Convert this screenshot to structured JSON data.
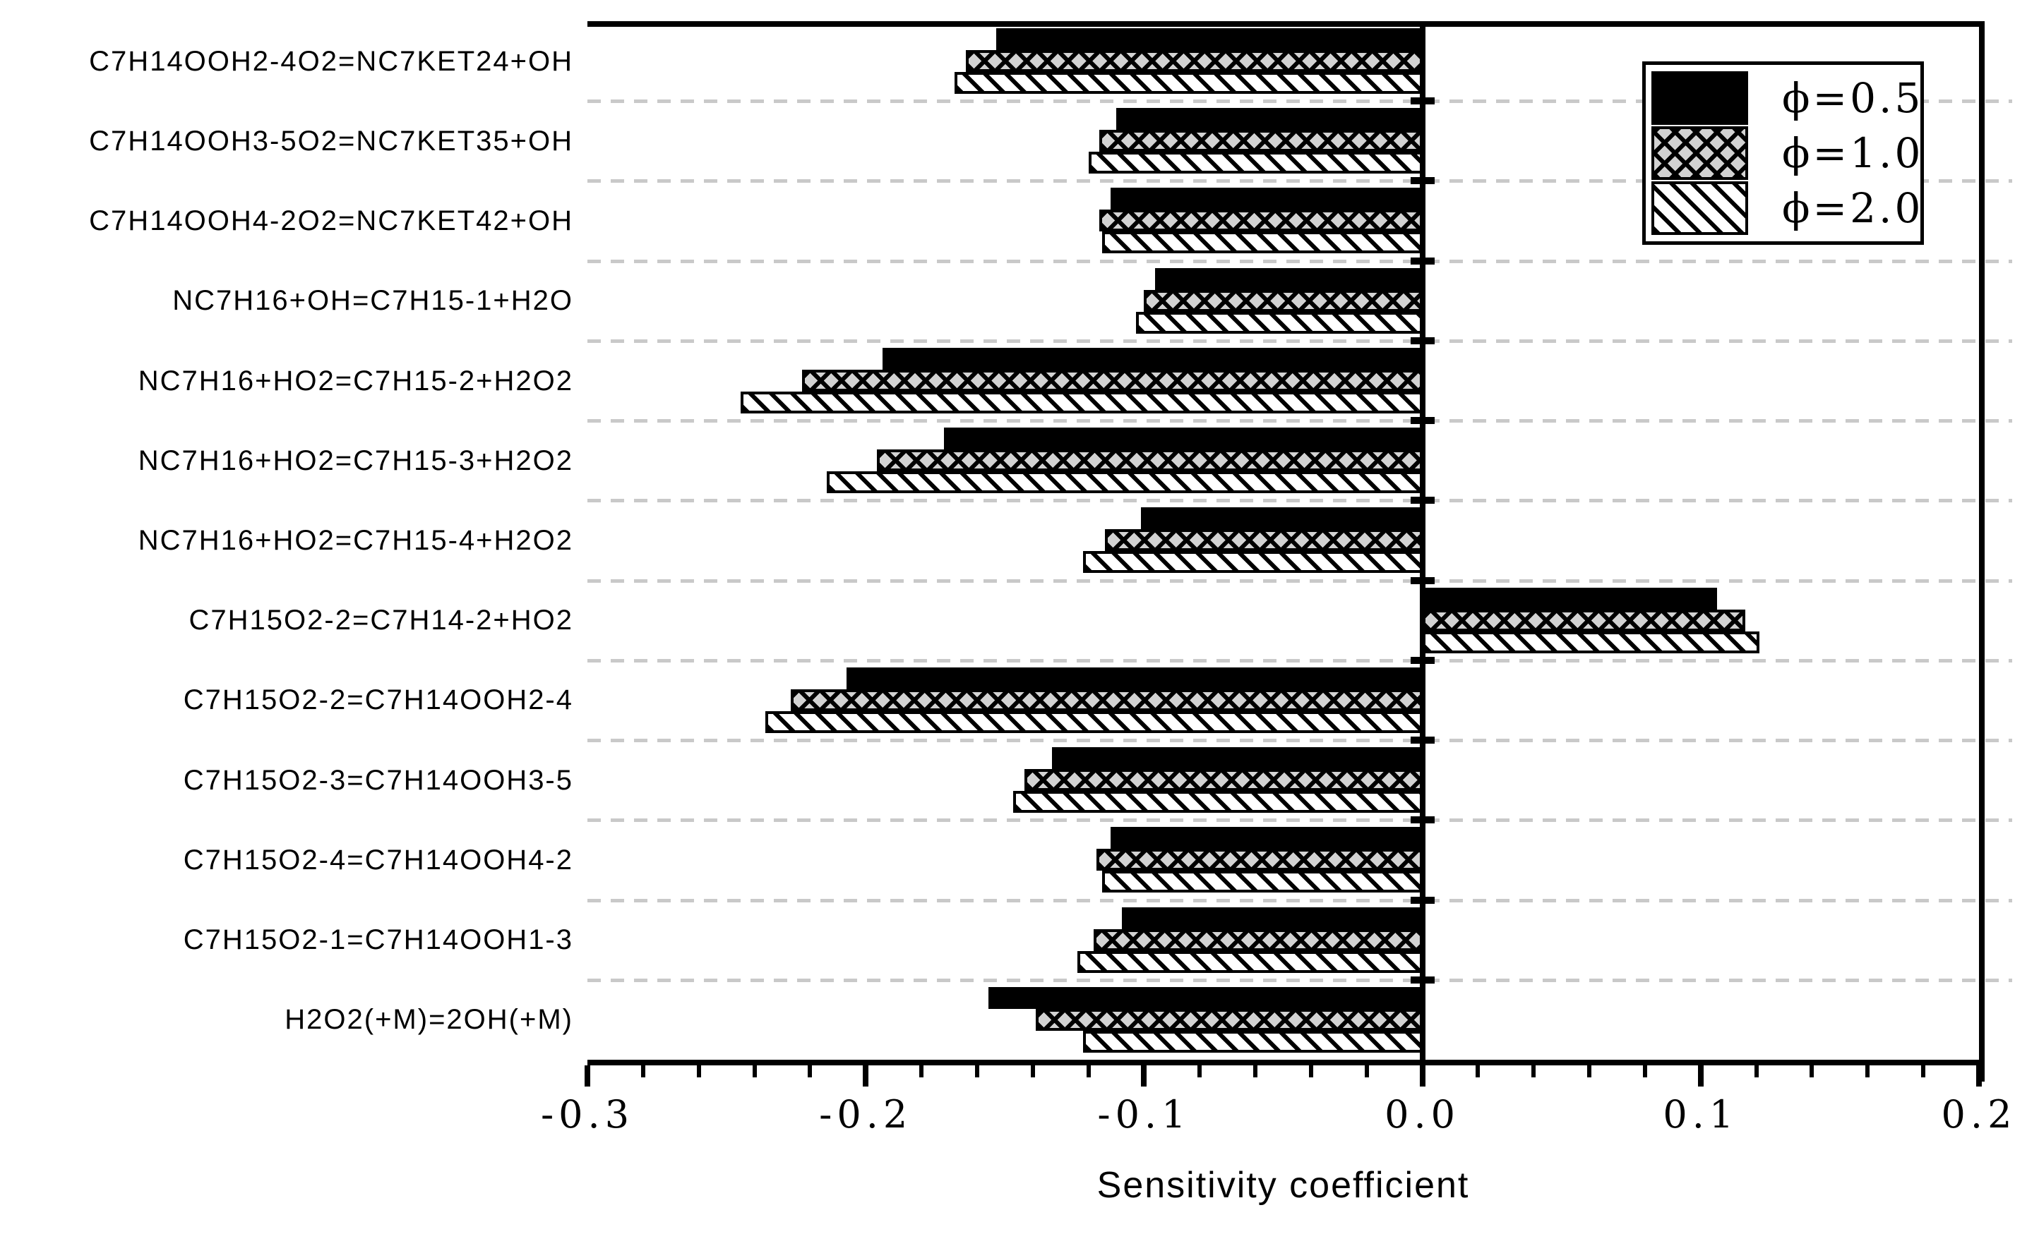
{
  "chart_data": {
    "type": "bar",
    "orientation": "horizontal",
    "title": "",
    "xlabel": "Sensitivity coefficient",
    "xlim": [
      -0.3,
      0.2
    ],
    "x_major_tick_step": 0.1,
    "x_minor_tick_step": 0.02,
    "x_tick_labels": [
      "-0.3",
      "-0.2",
      "-0.1",
      "0.0",
      "0.1",
      "0.2"
    ],
    "grid": "dashed horizontal lines between categories",
    "legend_position": "top-right inside plot",
    "categories": [
      "C7H14OOH2-4O2=NC7KET24+OH",
      "C7H14OOH3-5O2=NC7KET35+OH",
      "C7H14OOH4-2O2=NC7KET42+OH",
      "NC7H16+OH=C7H15-1+H2O",
      "NC7H16+HO2=C7H15-2+H2O2",
      "NC7H16+HO2=C7H15-3+H2O2",
      "NC7H16+HO2=C7H15-4+H2O2",
      "C7H15O2-2=C7H14-2+HO2",
      "C7H15O2-2=C7H14OOH2-4",
      "C7H15O2-3=C7H14OOH3-5",
      "C7H15O2-4=C7H14OOH4-2",
      "C7H15O2-1=C7H14OOH1-3",
      "H2O2(+M)=2OH(+M)"
    ],
    "series": [
      {
        "name": "ϕ=0.5",
        "pattern": "solid-black",
        "values": [
          -0.153,
          -0.11,
          -0.112,
          -0.096,
          -0.194,
          -0.172,
          -0.101,
          0.106,
          -0.207,
          -0.133,
          -0.112,
          -0.108,
          -0.156
        ]
      },
      {
        "name": "ϕ=1.0",
        "pattern": "crosshatch",
        "values": [
          -0.164,
          -0.116,
          -0.116,
          -0.1,
          -0.223,
          -0.196,
          -0.114,
          0.116,
          -0.227,
          -0.143,
          -0.117,
          -0.118,
          -0.139
        ]
      },
      {
        "name": "ϕ=2.0",
        "pattern": "diagonal-hatch",
        "values": [
          -0.168,
          -0.12,
          -0.115,
          -0.103,
          -0.245,
          -0.214,
          -0.122,
          0.121,
          -0.236,
          -0.147,
          -0.115,
          -0.124,
          -0.122
        ]
      }
    ],
    "colors": {
      "bar_fill_black": "#000000",
      "crosshatch_base": "#d2d2d2",
      "hatch_line": "#000000",
      "gridline": "#c9c9c9",
      "axis": "#000000",
      "background": "#ffffff"
    }
  }
}
